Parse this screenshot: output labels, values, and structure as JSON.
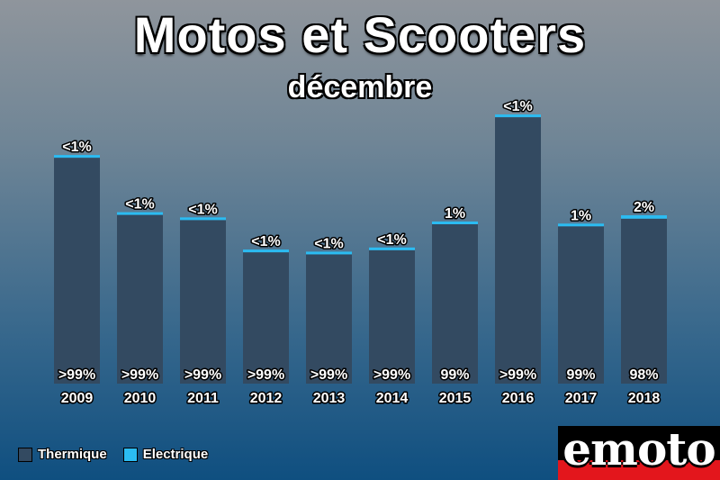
{
  "title": "Motos et Scooters",
  "subtitle": "décembre",
  "legend": [
    {
      "label": "Thermique",
      "color": "#334a61"
    },
    {
      "label": "Electrique",
      "color": "#2bbcf2"
    }
  ],
  "logo": {
    "text": "emoto"
  },
  "colors": {
    "thermique": "#334a61",
    "electrique": "#2bbcf2"
  },
  "chart_data": {
    "type": "bar",
    "stacked": true,
    "title": "Motos et Scooters",
    "subtitle": "décembre",
    "categories": [
      "2009",
      "2010",
      "2011",
      "2012",
      "2013",
      "2014",
      "2015",
      "2016",
      "2017",
      "2018"
    ],
    "totals": [
      2200,
      1650,
      1600,
      1290,
      1270,
      1310,
      1560,
      2590,
      1540,
      1620
    ],
    "series": [
      {
        "name": "Thermique",
        "share_labels": [
          ">99%",
          ">99%",
          ">99%",
          ">99%",
          ">99%",
          ">99%",
          "99%",
          ">99%",
          "99%",
          "98%"
        ],
        "share_percent": [
          99.9,
          99.9,
          99.9,
          99.9,
          99.9,
          99.9,
          99,
          99.9,
          99,
          98
        ]
      },
      {
        "name": "Electrique",
        "share_labels": [
          "<1%",
          "<1%",
          "<1%",
          "<1%",
          "<1%",
          "<1%",
          "1%",
          "<1%",
          "1%",
          "2%"
        ],
        "share_percent": [
          0.1,
          0.1,
          0.1,
          0.1,
          0.1,
          0.1,
          1,
          0.1,
          1,
          2
        ]
      }
    ],
    "legend_position": "bottom-left",
    "grid": false
  }
}
